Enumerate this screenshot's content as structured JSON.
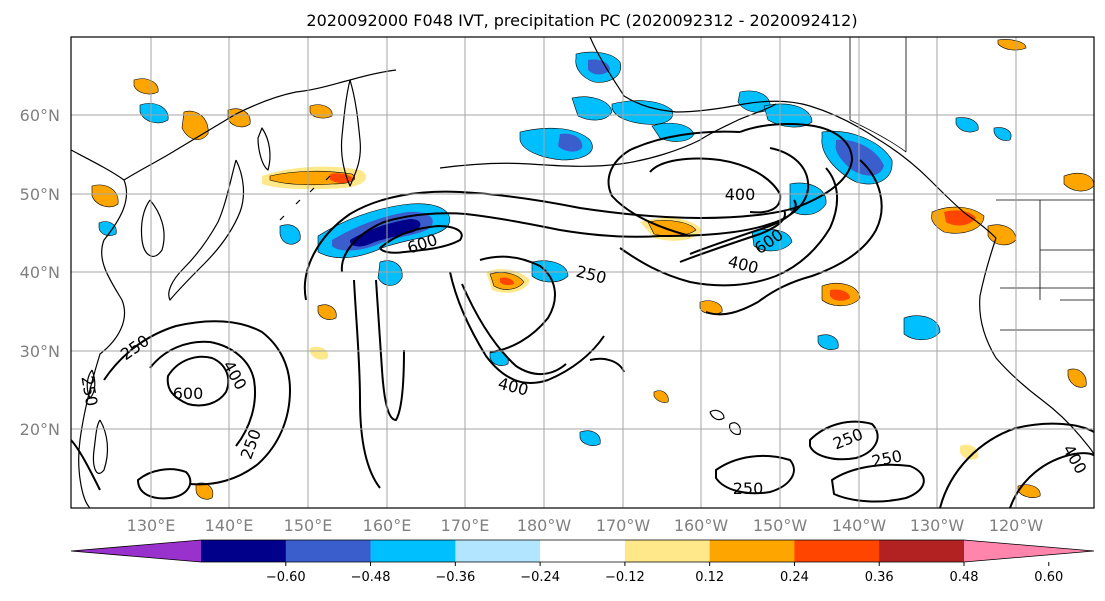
{
  "title": "2020092000 F048 IVT, precipitation PC (2020092312 - 2020092412)",
  "map": {
    "lon_ticks": [
      "130°E",
      "140°E",
      "150°E",
      "160°E",
      "170°E",
      "180°W",
      "170°W",
      "160°W",
      "150°W",
      "140°W",
      "130°W",
      "120°W"
    ],
    "lat_ticks": [
      "60°N",
      "50°N",
      "40°N",
      "30°N",
      "20°N"
    ],
    "ivt_contour_labels": [
      "400",
      "600",
      "250",
      "250",
      "400",
      "600",
      "250",
      "400",
      "250",
      "600",
      "400",
      "250",
      "250",
      "250",
      "400"
    ]
  },
  "colorbar": {
    "tick_labels": [
      "−0.60",
      "−0.48",
      "−0.36",
      "−0.24",
      "−0.12",
      "0.12",
      "0.24",
      "0.36",
      "0.48",
      "0.60"
    ],
    "colors": [
      "#9932cc",
      "#00008b",
      "#3a5fcd",
      "#00bfff",
      "#b2e5ff",
      "#ffffff",
      "#ffe88a",
      "#ffa500",
      "#ff4500",
      "#b22222",
      "#ff85ad"
    ],
    "extend": "both"
  },
  "precip_colors": {
    "neg_strong": "#00008b",
    "neg_mid": "#3a5fcd",
    "neg_light": "#00bfff",
    "neg_faint": "#b2e5ff",
    "pos_faint": "#ffe88a",
    "pos_light": "#ffa500",
    "pos_mid": "#ff4500",
    "pos_strong": "#b22222"
  }
}
